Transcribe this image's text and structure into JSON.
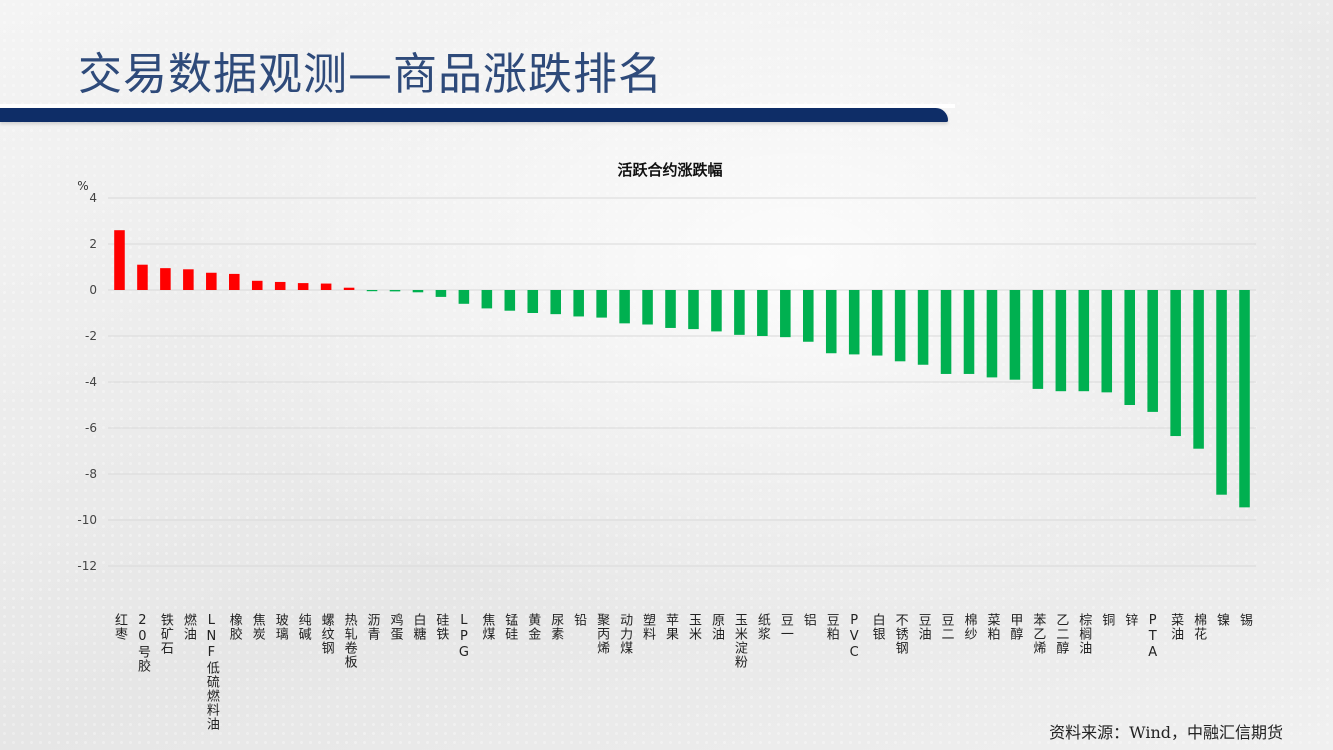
{
  "page": {
    "title": "交易数据观测—商品涨跌排名",
    "source": "资料来源：Wind，中融汇信期货"
  },
  "colors": {
    "title": "#2e4a7a",
    "title_bar": "#0e2d67",
    "up": "#ff0000",
    "down": "#00b050"
  },
  "chart_data": {
    "type": "bar",
    "title": "活跃合约涨跌幅",
    "ylabel": "%",
    "xlabel": "",
    "ylim": [
      -12,
      4
    ],
    "yticks": [
      4,
      2,
      0,
      -2,
      -4,
      -6,
      -8,
      -10,
      -12
    ],
    "grid": true,
    "categories": [
      "红枣",
      "20号胶",
      "铁矿石",
      "燃油",
      "LNF低硫燃料油",
      "橡胶",
      "焦炭",
      "玻璃",
      "纯碱",
      "螺纹钢",
      "热轧卷板",
      "沥青",
      "鸡蛋",
      "白糖",
      "硅铁",
      "LPG",
      "焦煤",
      "锰硅",
      "黄金",
      "尿素",
      "铅",
      "聚丙烯",
      "动力煤",
      "塑料",
      "苹果",
      "玉米",
      "原油",
      "玉米淀粉",
      "纸浆",
      "豆一",
      "铝",
      "豆粕",
      "PVC",
      "白银",
      "不锈钢",
      "豆油",
      "豆二",
      "棉纱",
      "菜粕",
      "甲醇",
      "苯乙烯",
      "乙二醇",
      "棕榈油",
      "铜",
      "锌",
      "PTA",
      "菜油",
      "棉花",
      "镍",
      "锡"
    ],
    "values": [
      2.6,
      1.1,
      0.95,
      0.9,
      0.75,
      0.7,
      0.4,
      0.35,
      0.3,
      0.28,
      0.1,
      -0.05,
      -0.06,
      -0.1,
      -0.3,
      -0.6,
      -0.8,
      -0.9,
      -1.0,
      -1.05,
      -1.15,
      -1.2,
      -1.45,
      -1.5,
      -1.65,
      -1.7,
      -1.8,
      -1.95,
      -2.0,
      -2.05,
      -2.25,
      -2.75,
      -2.8,
      -2.85,
      -3.1,
      -3.25,
      -3.65,
      -3.65,
      -3.8,
      -3.9,
      -4.3,
      -4.4,
      -4.4,
      -4.45,
      -5.0,
      -5.3,
      -6.35,
      -6.9,
      -8.9,
      -9.45
    ]
  }
}
